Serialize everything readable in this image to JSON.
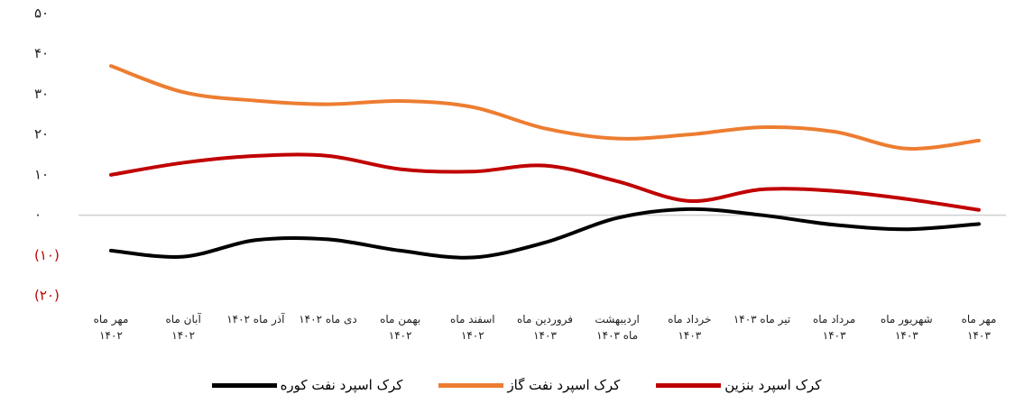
{
  "chart_data": {
    "type": "line",
    "categories": [
      "مهر ماه ۱۴۰۲",
      "آبان ماه ۱۴۰۲",
      "آذر ماه ۱۴۰۲",
      "دی ماه ۱۴۰۲",
      "بهمن ماه ۱۴۰۲",
      "اسفند ماه ۱۴۰۲",
      "فروردین ماه ۱۴۰۳",
      "اردیبهشت ماه ۱۴۰۳",
      "خرداد ماه ۱۴۰۳",
      "تیر ماه ۱۴۰۳",
      "مرداد ماه ۱۴۰۳",
      "شهریور ماه ۱۴۰۳",
      "مهر ماه ۱۴۰۳"
    ],
    "series": [
      {
        "name": "کرک اسپرد بنزین",
        "color": "#c00000",
        "values": [
          10,
          13,
          14.7,
          14.7,
          11.4,
          10.8,
          12.3,
          8.4,
          3.5,
          6.4,
          6,
          4,
          1.3
        ]
      },
      {
        "name": "کرک اسپرد نفت گاز",
        "color": "#ed7d31",
        "values": [
          37,
          30.5,
          28.4,
          27.5,
          28.3,
          26.8,
          21.5,
          19,
          20,
          21.8,
          20.7,
          16.5,
          18.5
        ]
      },
      {
        "name": "کرک اسپرد نفت کوره",
        "color": "#000000",
        "values": [
          -8.8,
          -10.3,
          -6.2,
          -6,
          -8.8,
          -10.5,
          -6.8,
          -0.7,
          1.5,
          0,
          -2.4,
          -3.5,
          -2.2
        ]
      }
    ],
    "ylim": [
      -20,
      50
    ],
    "yticks": [
      {
        "value": 50,
        "label": "۵۰"
      },
      {
        "value": 40,
        "label": "۴۰"
      },
      {
        "value": 30,
        "label": "۳۰"
      },
      {
        "value": 20,
        "label": "۲۰"
      },
      {
        "value": 10,
        "label": "۱۰"
      },
      {
        "value": 0,
        "label": "۰"
      },
      {
        "value": -10,
        "label": "(۱۰)"
      },
      {
        "value": -20,
        "label": "(۲۰)"
      }
    ],
    "negative_label_color": "#c00000",
    "zero_line": true,
    "legend": "bottom"
  }
}
